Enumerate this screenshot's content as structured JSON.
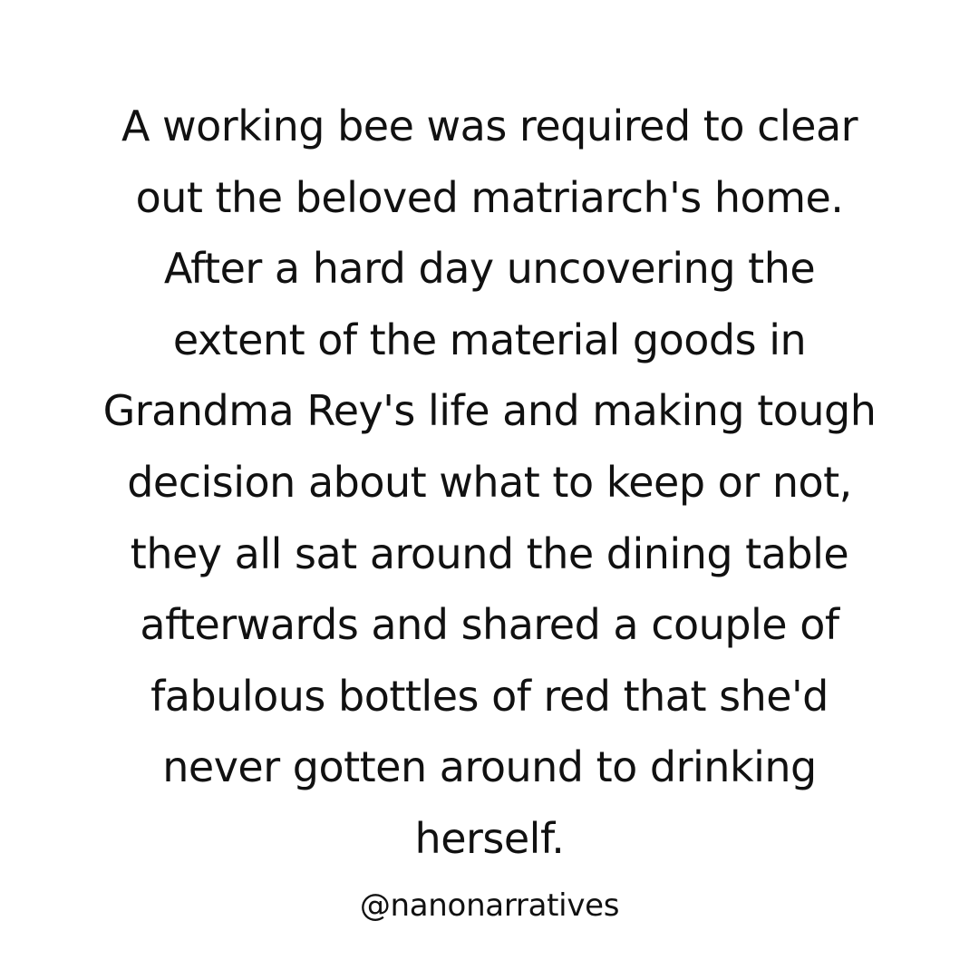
{
  "story": {
    "lines": [
      "A working bee was required to clear",
      "out the beloved matriarch's home.",
      "After a hard day uncovering the",
      "extent of the material goods in",
      "Grandma Rey's life and making tough",
      "decision about what to keep or not,",
      "they all sat around the dining table",
      "afterwards and shared a couple of",
      "fabulous bottles of red that she'd",
      "never gotten around to drinking",
      "herself."
    ]
  },
  "handle": "@nanonarratives",
  "colors": {
    "background": "#ffffff",
    "text": "#111111"
  }
}
